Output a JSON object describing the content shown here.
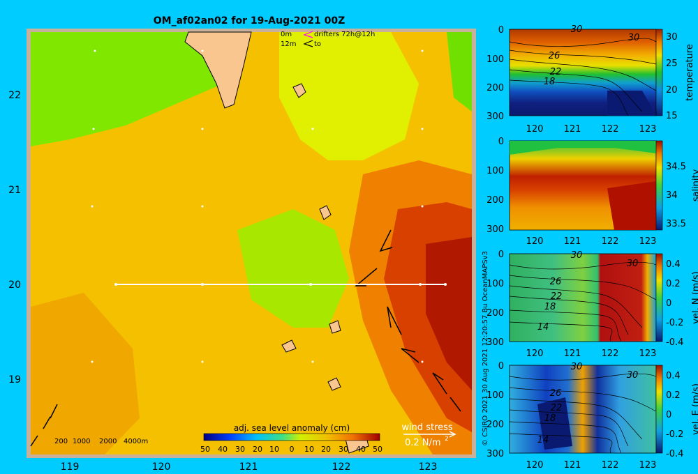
{
  "title": "OM_af02an02 for 19-Aug-2021 00Z",
  "credit": "© CSIRO 2021   30 Aug 2021 12:20:57 Bu OceanMAPSv3",
  "colors": {
    "background": "#00ccff",
    "land": "#f9c690",
    "border": "#c8b09a",
    "section_line": "#ffffff"
  },
  "map": {
    "lon_ticks": [
      "119",
      "120",
      "121",
      "122",
      "123"
    ],
    "lat_ticks": [
      "22",
      "21",
      "20",
      "19"
    ],
    "drifter_legend": {
      "l1": "0m",
      "l2": "12m",
      "l3": "drifters 72h@12h",
      "l4": "to"
    },
    "depth_legend": {
      "d1": "200",
      "d2": "1000",
      "d3": "2000",
      "d4": "4000m"
    },
    "colorbar_label": "adj. sea level anomaly (cm)",
    "colorbar_ticks": [
      "50",
      "40",
      "30",
      "20",
      "10",
      "0",
      "10",
      "20",
      "30",
      "40",
      "50"
    ],
    "wind_label": "wind stress",
    "wind_scale": "0.2 N/m",
    "wind_scale_sup": "2"
  },
  "panels": [
    {
      "id": "temperature",
      "ylabel": "temperature",
      "yticks": [
        "0",
        "100",
        "200",
        "300"
      ],
      "xticks": [
        "120",
        "121",
        "122",
        "123"
      ],
      "cbticks": [
        "30",
        "25",
        "20",
        "15"
      ],
      "contours": [
        "30",
        "30",
        "26",
        "22",
        "18"
      ]
    },
    {
      "id": "salinity",
      "ylabel": "salinity",
      "yticks": [
        "0",
        "100",
        "200",
        "300"
      ],
      "xticks": [
        "120",
        "121",
        "122",
        "123"
      ],
      "cbticks": [
        "34.5",
        "34",
        "33.5"
      ],
      "contours": []
    },
    {
      "id": "velN",
      "ylabel": "vel. N (m/s)",
      "yticks": [
        "0",
        "100",
        "200",
        "300"
      ],
      "xticks": [
        "120",
        "121",
        "122",
        "123"
      ],
      "cbticks": [
        "0.4",
        "0.2",
        "0",
        "-0.2",
        "-0.4"
      ],
      "contours": [
        "30",
        "30",
        "26",
        "22",
        "18",
        "14"
      ]
    },
    {
      "id": "velE",
      "ylabel": "vel. E (m/s)",
      "yticks": [
        "0",
        "100",
        "200",
        "300"
      ],
      "xticks": [
        "120",
        "121",
        "122",
        "123"
      ],
      "cbticks": [
        "0.4",
        "0.2",
        "0",
        "-0.2",
        "-0.4"
      ],
      "contours": [
        "30",
        "30",
        "26",
        "22",
        "18",
        "14"
      ]
    }
  ],
  "chart_data": [
    {
      "type": "heatmap",
      "title": "OM_af02an02 for 19-Aug-2021 00Z",
      "variable": "adj. sea level anomaly (cm)",
      "xlim": [
        118.5,
        123.45
      ],
      "ylim": [
        18.3,
        22.7
      ],
      "x_ticks": [
        119,
        120,
        121,
        122,
        123
      ],
      "y_ticks": [
        19,
        20,
        21,
        22
      ],
      "color_range": [
        -50,
        50
      ],
      "section_line": {
        "lat": 20,
        "lon": [
          119.5,
          123.2
        ]
      },
      "features": [
        {
          "label": "high anomaly (~40-50 cm) eddy",
          "lon": 123.3,
          "lat": 20.0
        },
        {
          "label": "low anomaly (~5-15 cm) region",
          "lon": 121.4,
          "lat": 20.2
        }
      ]
    },
    {
      "type": "heatmap",
      "variable": "temperature",
      "xlim": [
        119.5,
        123.3
      ],
      "ylim": [
        300,
        0
      ],
      "color_range": [
        15,
        31
      ],
      "contour_labels": [
        30,
        30,
        26,
        22,
        18
      ]
    },
    {
      "type": "heatmap",
      "variable": "salinity",
      "xlim": [
        119.5,
        123.3
      ],
      "ylim": [
        300,
        0
      ],
      "color_range": [
        33.4,
        34.9
      ]
    },
    {
      "type": "heatmap",
      "variable": "vel. N (m/s)",
      "xlim": [
        119.5,
        123.3
      ],
      "ylim": [
        300,
        0
      ],
      "color_range": [
        -0.45,
        0.45
      ],
      "contour_labels": [
        30,
        30,
        26,
        22,
        18,
        14
      ]
    },
    {
      "type": "heatmap",
      "variable": "vel. E (m/s)",
      "xlim": [
        119.5,
        123.3
      ],
      "ylim": [
        300,
        0
      ],
      "color_range": [
        -0.45,
        0.45
      ],
      "contour_labels": [
        30,
        30,
        26,
        22,
        18,
        14
      ]
    }
  ]
}
